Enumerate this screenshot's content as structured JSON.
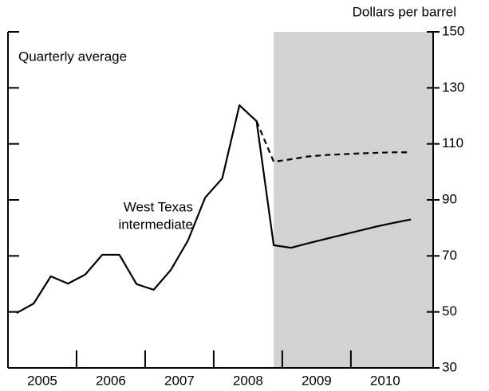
{
  "chart_data": {
    "type": "line",
    "title": "Quarterly average",
    "y_label": "Dollars per barrel",
    "annotations": [
      "West Texas",
      "intermediate"
    ],
    "x": [
      2005.125,
      2005.375,
      2005.625,
      2005.875,
      2006.125,
      2006.375,
      2006.625,
      2006.875,
      2007.125,
      2007.375,
      2007.625,
      2007.875,
      2008.125,
      2008.375,
      2008.625,
      2008.875,
      2009.125,
      2009.375,
      2009.625,
      2009.875,
      2010.125,
      2010.375,
      2010.625,
      2010.875
    ],
    "series": [
      {
        "color": "#000000",
        "dash": false,
        "values": [
          49.6,
          53,
          62.7,
          60.1,
          63.3,
          70.4,
          70.4,
          59.9,
          57.9,
          65,
          75.5,
          90.8,
          97.7,
          123.8,
          118.1,
          73.8,
          72.9,
          74.5,
          76,
          77.5,
          79,
          80.5,
          81.8,
          83
        ]
      },
      {
        "color": "#000000",
        "dash": true,
        "values": [
          null,
          null,
          null,
          null,
          null,
          null,
          null,
          null,
          null,
          null,
          null,
          null,
          null,
          null,
          118.1,
          103.6,
          104.5,
          105.5,
          106,
          106.3,
          106.6,
          106.8,
          107,
          107
        ]
      }
    ],
    "xlim": [
      2005,
      2011.2
    ],
    "xticks": [
      2006,
      2007,
      2008,
      2009,
      2010
    ],
    "xtick_labels": [
      {
        "value": 2005.5,
        "label": "2005"
      },
      {
        "value": 2006.5,
        "label": "2006"
      },
      {
        "value": 2007.5,
        "label": "2007"
      },
      {
        "value": 2008.5,
        "label": "2008"
      },
      {
        "value": 2009.5,
        "label": "2009"
      },
      {
        "value": 2010.5,
        "label": "2010"
      }
    ],
    "ylim": [
      30,
      150
    ],
    "yticks": [
      30,
      50,
      70,
      90,
      110,
      130,
      150
    ],
    "shaded_region": [
      2008.875,
      2011.2
    ],
    "shade_color": "#d1d2d4"
  }
}
